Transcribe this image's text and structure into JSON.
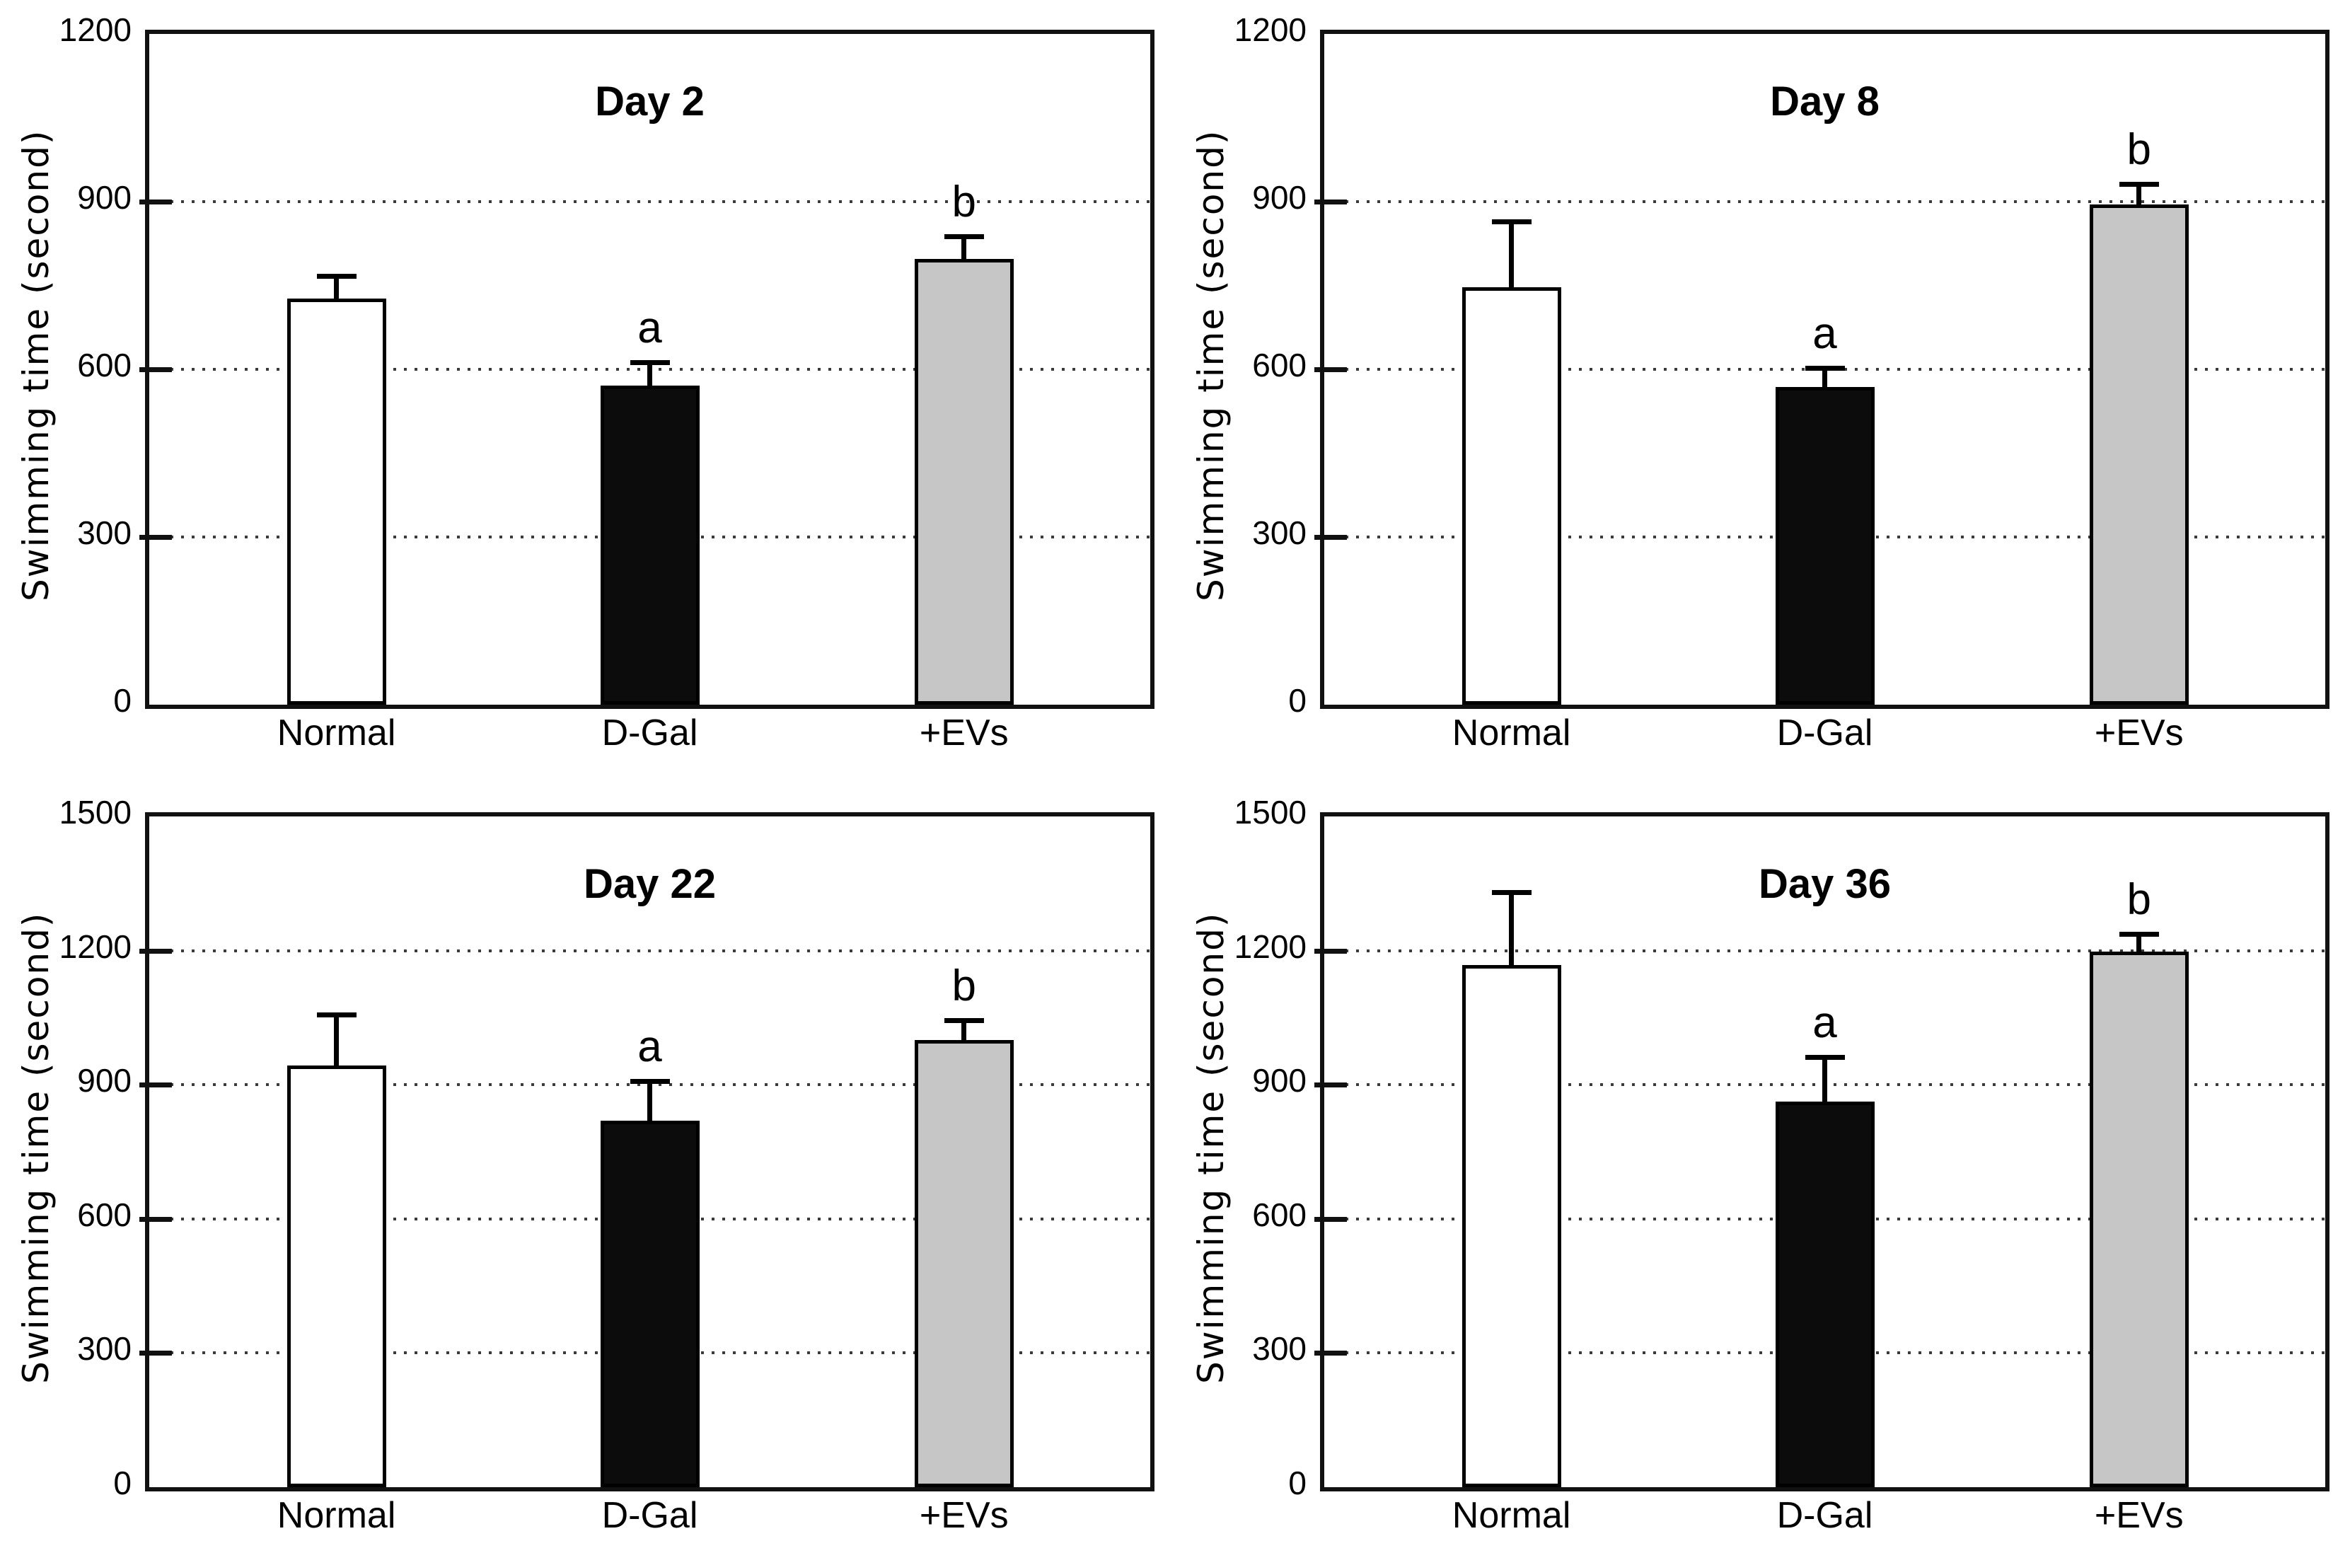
{
  "figure": {
    "background": "#ffffff",
    "axis_color": "#111111",
    "grid_style": "dotted horizontal",
    "grid_color": "#3a3a3a",
    "error_bar_direction": "upper only",
    "layout": "2x2 grid of bar charts"
  },
  "chart_data": [
    {
      "type": "bar",
      "title": "Day 2",
      "ylabel": "Swimming time (second)",
      "xlabel": "",
      "categories": [
        "Normal",
        "D-Gal",
        "+EVs"
      ],
      "values": [
        727,
        571,
        798
      ],
      "errors": [
        44,
        46,
        44
      ],
      "sig_labels": [
        "",
        "a",
        "b"
      ],
      "ylim": [
        0,
        1200
      ],
      "yticks": [
        0,
        300,
        600,
        900,
        1200
      ],
      "bar_colors": [
        "#ffffff",
        "#0c0c0c",
        "#c6c6c6"
      ],
      "legend": "none",
      "grid": "dotted at interior ticks"
    },
    {
      "type": "bar",
      "title": "Day 8",
      "ylabel": "Swimming time (second)",
      "xlabel": "",
      "categories": [
        "Normal",
        "D-Gal",
        "+EVs"
      ],
      "values": [
        747,
        569,
        895
      ],
      "errors": [
        122,
        37,
        40
      ],
      "sig_labels": [
        "",
        "a",
        "b"
      ],
      "ylim": [
        0,
        1200
      ],
      "yticks": [
        0,
        300,
        600,
        900,
        1200
      ],
      "bar_colors": [
        "#ffffff",
        "#0c0c0c",
        "#c6c6c6"
      ],
      "legend": "none",
      "grid": "dotted at interior ticks"
    },
    {
      "type": "bar",
      "title": "Day 22",
      "ylabel": "Swimming time (second)",
      "xlabel": "",
      "categories": [
        "Normal",
        "D-Gal",
        "+EVs"
      ],
      "values": [
        943,
        820,
        1000
      ],
      "errors": [
        119,
        93,
        49
      ],
      "sig_labels": [
        "",
        "a",
        "b"
      ],
      "ylim": [
        0,
        1500
      ],
      "yticks": [
        0,
        300,
        600,
        900,
        1200,
        1500
      ],
      "bar_colors": [
        "#ffffff",
        "#0c0c0c",
        "#c6c6c6"
      ],
      "legend": "none",
      "grid": "dotted at interior ticks"
    },
    {
      "type": "bar",
      "title": "Day 36",
      "ylabel": "Swimming time (second)",
      "xlabel": "",
      "categories": [
        "Normal",
        "D-Gal",
        "+EVs"
      ],
      "values": [
        1167,
        863,
        1198
      ],
      "errors": [
        168,
        104,
        44
      ],
      "sig_labels": [
        "",
        "a",
        "b"
      ],
      "ylim": [
        0,
        1500
      ],
      "yticks": [
        0,
        300,
        600,
        900,
        1200,
        1500
      ],
      "bar_colors": [
        "#ffffff",
        "#0c0c0c",
        "#c6c6c6"
      ],
      "legend": "none",
      "grid": "dotted at interior ticks"
    }
  ]
}
